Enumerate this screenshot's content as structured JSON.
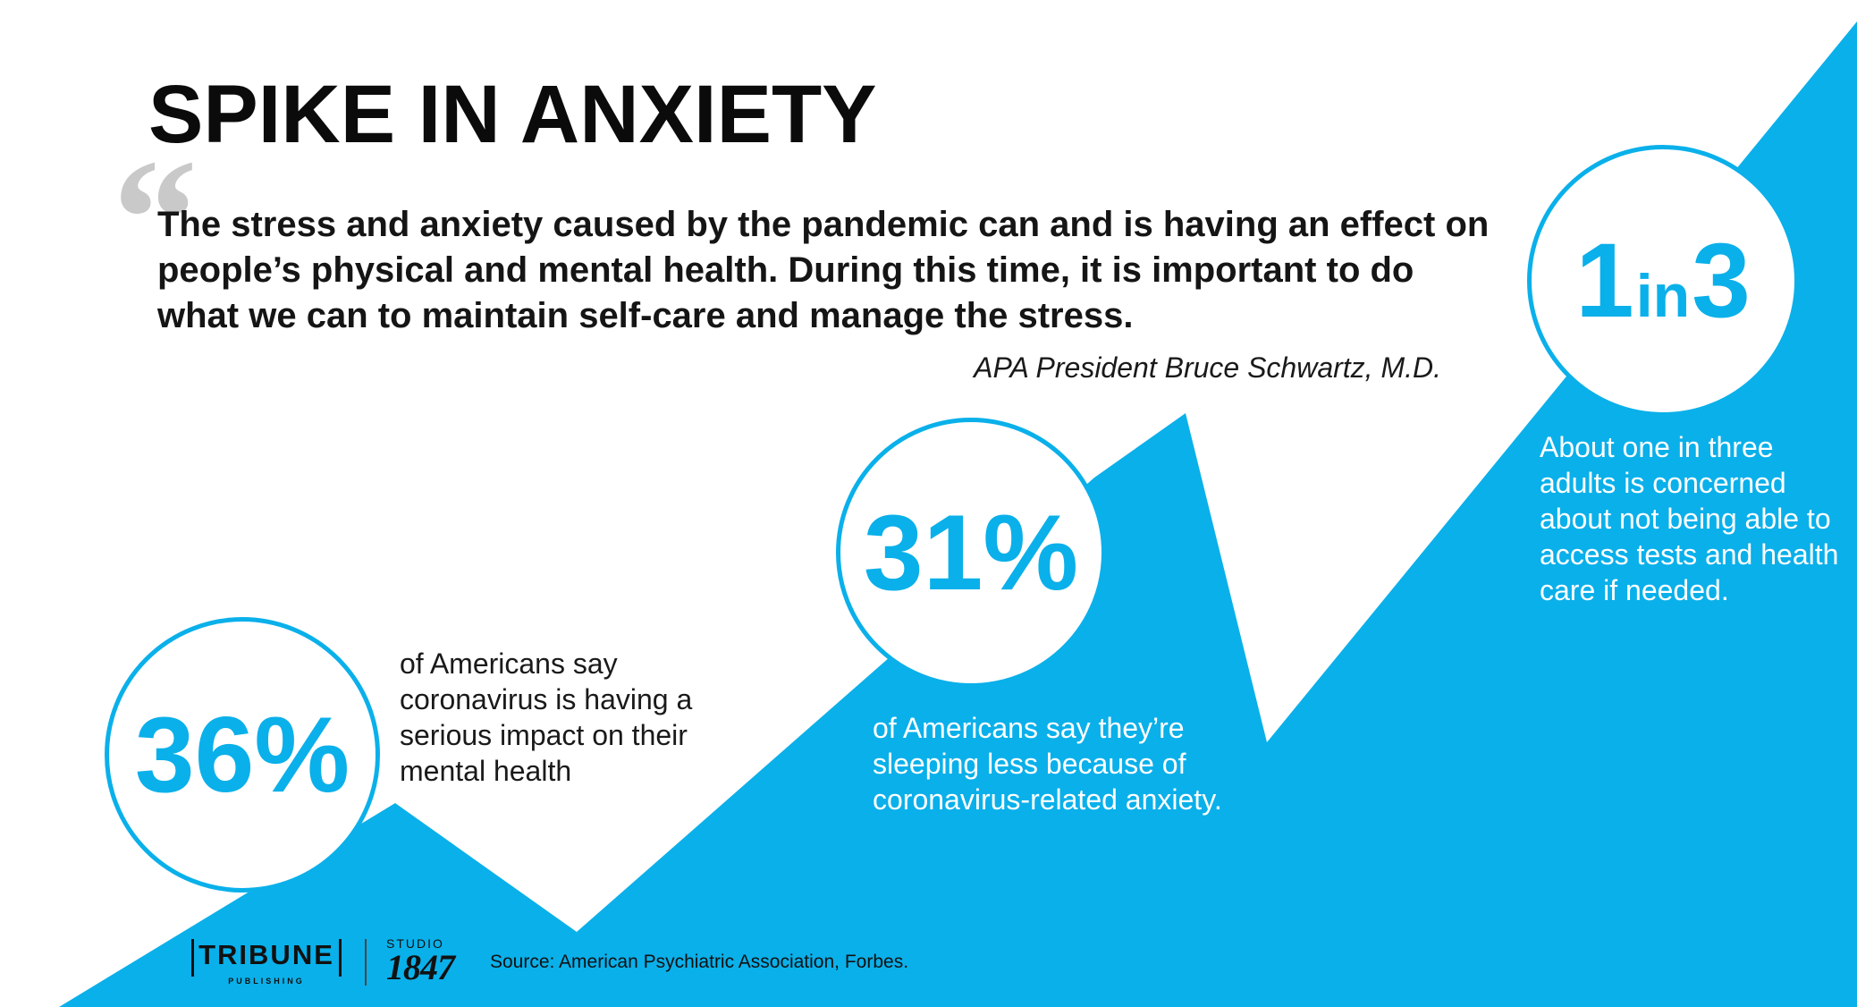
{
  "title": "SPIKE IN ANXIETY",
  "quote": {
    "mark": "“",
    "text": "The stress and anxiety caused by the pandemic can and is having an effect on people’s physical and mental health. During this time, it is important to do what we can to maintain self-care and manage the stress.",
    "attribution": "APA President Bruce Schwartz, M.D."
  },
  "stats": [
    {
      "value": "36%",
      "description": "of Americans say coronavirus is having a serious impact on their mental health"
    },
    {
      "value": "31%",
      "description": "of Americans say they’re sleeping less because of coronavirus-related anxiety."
    },
    {
      "value_big_1": "1",
      "value_small": "in",
      "value_big_2": "3",
      "description": "About one in three adults is concerned about not being able to access tests and health care if needed."
    }
  ],
  "logos": {
    "tribune_name": "TRIBUNE",
    "tribune_sub": "PUBLISHING",
    "studio_label": "STUDIO",
    "studio_number": "1847"
  },
  "source": "Source: American Psychiatric Association, Forbes.",
  "colors": {
    "accent": "#0ab0ea",
    "quote_mark": "#c9c9c9",
    "text": "#111111"
  }
}
